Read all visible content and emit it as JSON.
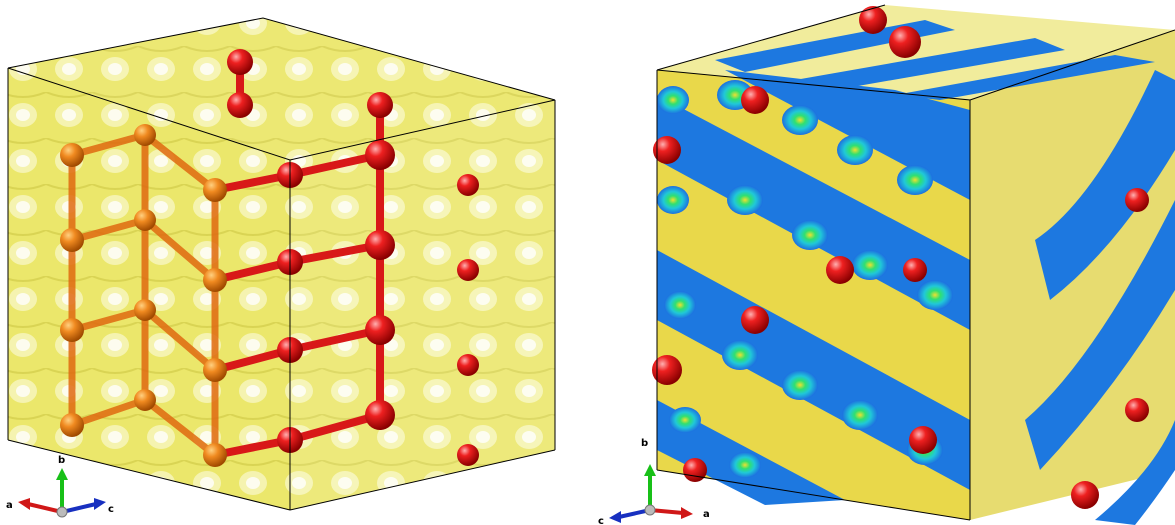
{
  "panels": [
    {
      "id": "left",
      "view": "crystal-structure-with-yellow-isosurface",
      "axis_triad": {
        "x_label": "a",
        "y_label": "b",
        "z_label": "c"
      }
    },
    {
      "id": "right",
      "view": "crystal-structure-with-sliced-density-map",
      "axis_triad": {
        "x_label": "a",
        "y_label": "b",
        "z_label": "c"
      }
    }
  ],
  "colors": {
    "isosurface": "#e8e24a",
    "atom": "#e01010",
    "bond": "#d81818",
    "slice_low": "#1d6fe0",
    "slice_mid": "#20d8a0",
    "slice_high": "#f0e030",
    "axis_a": "#d01818",
    "axis_b": "#18c018",
    "axis_c": "#1830c0"
  },
  "icons": [
    "axis-triad-icon",
    "atom-sphere-icon"
  ]
}
